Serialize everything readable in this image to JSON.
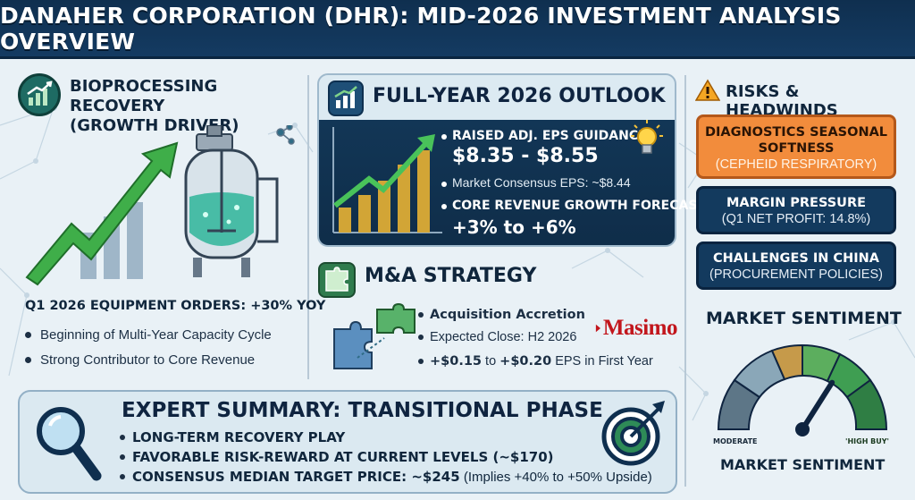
{
  "header": {
    "title": "DANAHER CORPORATION (DHR): MID-2026 INVESTMENT ANALYSIS OVERVIEW"
  },
  "bioprocessing": {
    "title_line1": "BIOPROCESSING RECOVERY",
    "title_line2": "(GROWTH DRIVER)",
    "orders": "Q1 2026 EQUIPMENT ORDERS: +30% YOY",
    "points": [
      "Beginning of Multi-Year Capacity Cycle",
      "Strong Contributor to Core Revenue"
    ]
  },
  "outlook": {
    "title": "FULL-YEAR 2026 OUTLOOK",
    "eps_label": "RAISED ADJ. EPS GUIDANCE:",
    "eps_range": "$8.35 - $8.55",
    "consensus": "Market Consensus EPS: ~$8.44",
    "rev_label": "CORE REVENUE GROWTH FORECAST:",
    "rev_range": "+3% to +6%"
  },
  "ma": {
    "title": "M&A STRATEGY",
    "line1": "Acquisition Accretion",
    "line2": "Expected Close: H2 2026",
    "line3_a": "+$0.15",
    "line3_b": " to ",
    "line3_c": "+$0.20",
    "line3_d": " EPS in First Year",
    "logo": "Masimo"
  },
  "risks": {
    "title": "RISKS & HEADWINDS",
    "items": [
      {
        "title_line1": "DIAGNOSTICS SEASONAL",
        "title_line2": "SOFTNESS",
        "sub": "(CEPHEID RESPIRATORY)"
      },
      {
        "title": "MARGIN PRESSURE",
        "sub": "(Q1 NET PROFIT: 14.8%)"
      },
      {
        "title": "CHALLENGES IN CHINA",
        "sub": "(PROCUREMENT POLICIES)"
      }
    ]
  },
  "sentiment": {
    "title": "MARKET SENTIMENT",
    "bottom_title": "MARKET SENTIMENT",
    "left_label": "MODERATE",
    "right_label": "'HIGH BUY'",
    "level": 0.68
  },
  "expert": {
    "title": "EXPERT SUMMARY: TRANSITIONAL PHASE",
    "line1": "LONG-TERM RECOVERY PLAY",
    "line2": "FAVORABLE RISK-REWARD AT CURRENT LEVELS (~$170)",
    "line3_a": "CONSENSUS MEDIAN TARGET PRICE: ~$245",
    "line3_b": " (Implies +40% to +50% Upside)"
  },
  "colors": {
    "navy": "#133a5e",
    "orange": "#f28c3c",
    "green_arrow": "#3fae49",
    "masimo_red": "#c2161c"
  }
}
